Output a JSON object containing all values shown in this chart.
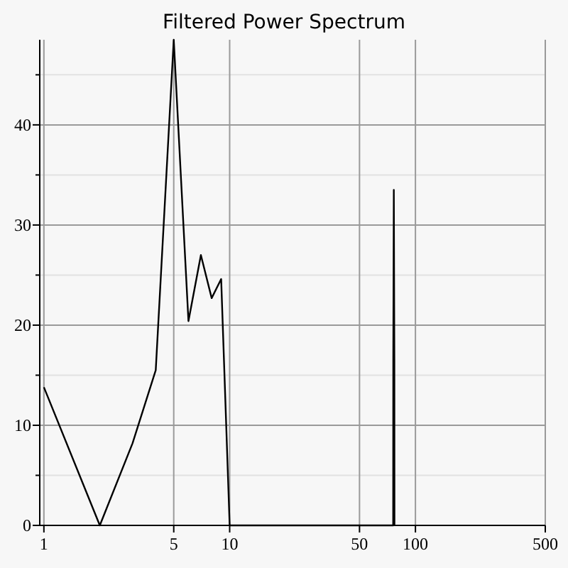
{
  "chart_data": {
    "type": "line",
    "title": "Filtered Power Spectrum",
    "x": [
      1,
      2,
      3,
      4,
      5,
      6,
      7,
      8,
      9,
      10,
      75.9,
      76,
      76.5,
      77,
      77.1
    ],
    "values": [
      13.8,
      0,
      8.2,
      15.5,
      48.5,
      20.4,
      27,
      22.7,
      24.6,
      0,
      0,
      16.6,
      33.5,
      16.6,
      0
    ],
    "color": "#000000",
    "log": "x",
    "xlim": [
      0.95,
      500
    ],
    "xticks": [
      1,
      5,
      10,
      50,
      100,
      500
    ],
    "ylim": [
      0,
      48.5
    ],
    "yticks": [
      0,
      {
        "value": 5,
        "label": null
      },
      10,
      {
        "value": 15,
        "label": null
      },
      20,
      {
        "value": 25,
        "label": null
      },
      30,
      {
        "value": 35,
        "label": null
      },
      40,
      {
        "value": 45,
        "label": null
      }
    ],
    "grid": true,
    "marker": "none",
    "line_style": "solid"
  }
}
